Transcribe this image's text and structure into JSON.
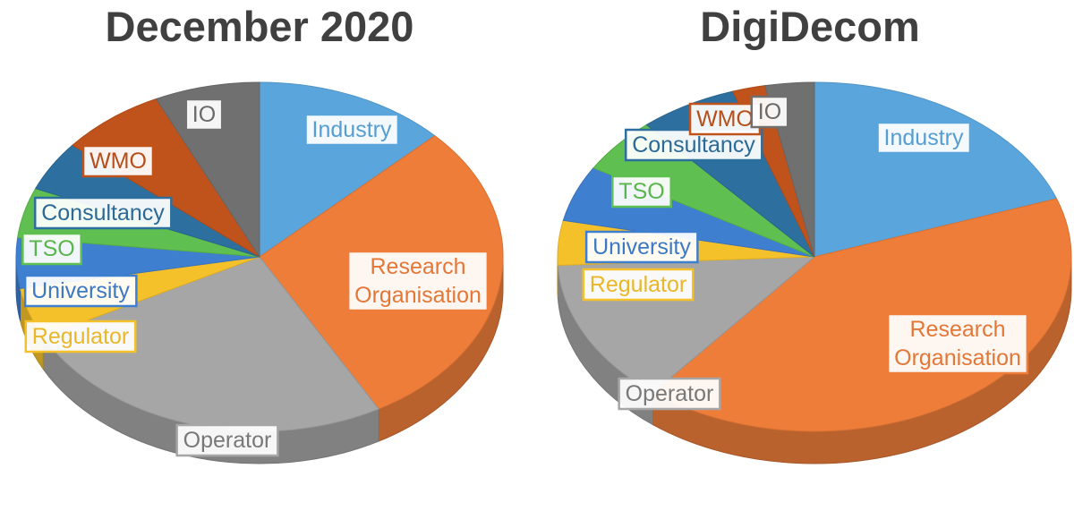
{
  "chart_data": [
    {
      "type": "pie",
      "title": "December 2020",
      "categories": [
        "Industry",
        "Research Organisation",
        "Operator",
        "Regulator",
        "University",
        "TSO",
        "Consultancy",
        "WMO",
        "IO"
      ],
      "values": [
        11,
        25,
        22,
        4,
        4,
        4,
        4,
        6,
        6
      ],
      "colors": [
        "#5aa5dc",
        "#ef7d3a",
        "#a6a6a6",
        "#f5c12a",
        "#3f7fcf",
        "#5fbf50",
        "#2d6f9e",
        "#c0521b",
        "#707070"
      ]
    },
    {
      "type": "pie",
      "title": "DigiDecom",
      "categories": [
        "Industry",
        "Research Organisation",
        "Operator",
        "Regulator",
        "University",
        "TSO",
        "Consultancy",
        "WMO",
        "IO"
      ],
      "values": [
        19,
        40,
        13,
        4,
        5,
        5,
        6,
        2,
        3
      ],
      "colors": [
        "#5aa5dc",
        "#ef7d3a",
        "#a6a6a6",
        "#f5c12a",
        "#3f7fcf",
        "#5fbf50",
        "#2d6f9e",
        "#c0521b",
        "#707070"
      ]
    }
  ]
}
